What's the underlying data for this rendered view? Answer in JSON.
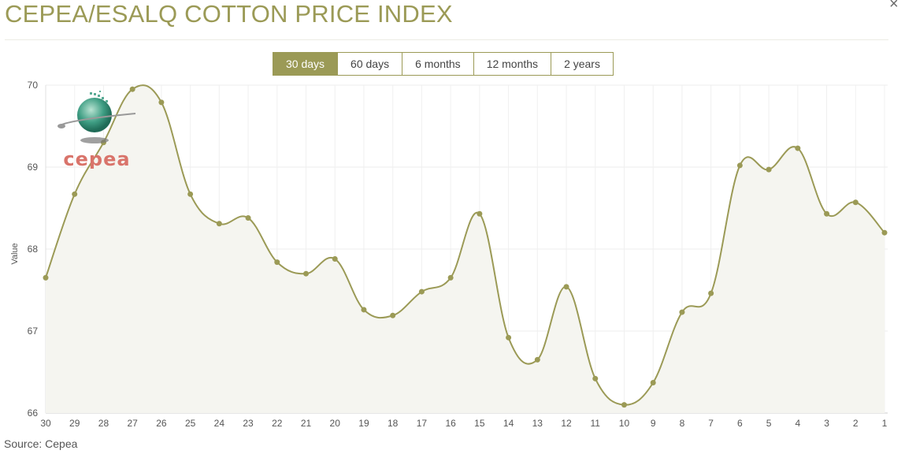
{
  "title": "CEPEA/ESALQ COTTON PRICE INDEX",
  "close_label": "×",
  "tabs": [
    {
      "label": "30 days",
      "active": true
    },
    {
      "label": "60 days",
      "active": false
    },
    {
      "label": "6 months",
      "active": false
    },
    {
      "label": "12 months",
      "active": false
    },
    {
      "label": "2 years",
      "active": false
    }
  ],
  "source": "Source: Cepea",
  "logo_text": "cepea",
  "colors": {
    "accent": "#9b9a56",
    "fill": "#f5f5f0",
    "logo_red": "#d9746b",
    "logo_green": "#3f9e84"
  },
  "chart_data": {
    "type": "area",
    "ylabel": "Value",
    "xlabel": "",
    "title": "",
    "ylim": [
      66,
      70
    ],
    "yticks": [
      66,
      67,
      68,
      69,
      70
    ],
    "grid": true,
    "categories": [
      "30",
      "29",
      "28",
      "27",
      "26",
      "25",
      "24",
      "23",
      "22",
      "21",
      "20",
      "19",
      "18",
      "17",
      "16",
      "15",
      "14",
      "13",
      "12",
      "11",
      "10",
      "9",
      "8",
      "7",
      "6",
      "5",
      "4",
      "3",
      "2",
      "1"
    ],
    "values": [
      67.65,
      68.67,
      69.3,
      69.95,
      69.79,
      68.67,
      68.31,
      68.38,
      67.84,
      67.7,
      67.88,
      67.26,
      67.19,
      67.48,
      67.65,
      68.43,
      66.92,
      66.65,
      67.54,
      66.42,
      66.1,
      66.37,
      67.23,
      67.46,
      69.02,
      68.97,
      69.23,
      68.43,
      68.57,
      68.2
    ]
  }
}
